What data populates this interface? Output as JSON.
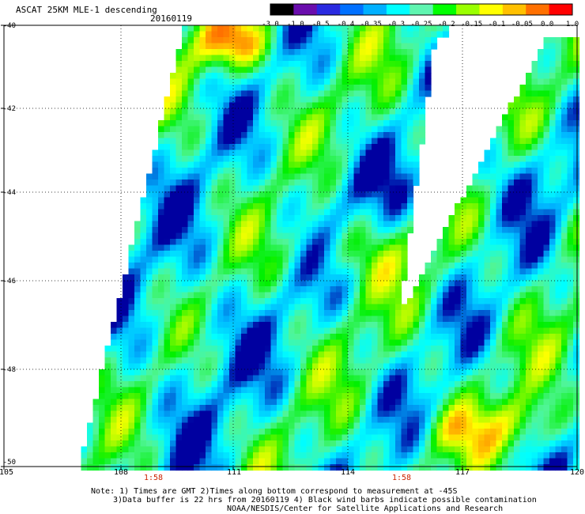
{
  "header": {
    "title": "ASCAT 25KM MLE-1 descending",
    "date": "20160119"
  },
  "colorbar": {
    "labels": [
      "-3.0",
      "-1.0",
      "-0.5",
      "-0.4",
      "-0.35",
      "-0.3",
      "-0.25",
      "-0.2",
      "-0.15",
      "-0.1",
      "-0.05",
      "0.0",
      "1.0"
    ],
    "colors": [
      "#000000",
      "#6a0dad",
      "#2a2ae0",
      "#0070ff",
      "#00b0ff",
      "#00ffff",
      "#5ff5b0",
      "#00ff00",
      "#9aff00",
      "#ffff00",
      "#ffc000",
      "#ff7000",
      "#ff0000"
    ]
  },
  "axes": {
    "y_ticks": [
      "-40",
      "-42",
      "-44",
      "-46",
      "-48",
      "-50"
    ],
    "x_ticks": [
      "105",
      "108",
      "111",
      "114",
      "117",
      "120"
    ]
  },
  "pass_times": [
    "1:58",
    "1:58"
  ],
  "notes": [
    "Note: 1) Times are GMT 2)Times along bottom correspond to measurement at -45S",
    "3)Data buffer is 22 hrs from 20160119 4) Black wind barbs indicate possible contamination",
    "NOAA/NESDIS/Center for Satellite Applications and Research"
  ]
}
